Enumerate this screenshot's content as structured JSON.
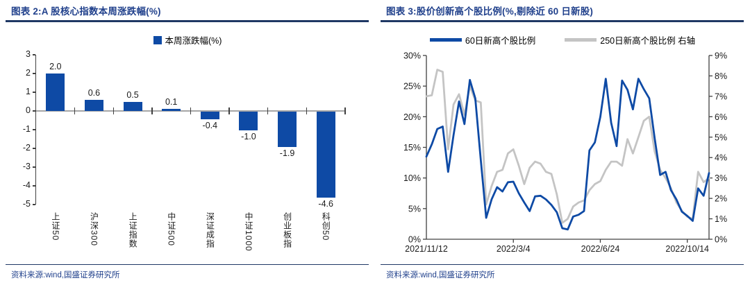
{
  "colors": {
    "accent_blue": "#0E4AA5",
    "gray_line": "#C4C4C4",
    "navy_text": "#21418C",
    "rule_navy": "#1F3864",
    "axis_gray": "#A6A6A6",
    "axis_dark": "#404040",
    "label_dark": "#1A1A1A"
  },
  "panels": {
    "left": {
      "title": "图表 2:A 股核心指数本周涨跌幅(%)",
      "source": "资料来源:wind,国盛证券研究所"
    },
    "right": {
      "title": "图表 3:股价创新高个股比例(%,剔除近 60 日新股)",
      "source": "资料来源:wind,国盛证券研究所"
    }
  },
  "chart_data": [
    {
      "type": "bar",
      "title": "A股核心指数本周涨跌幅(%)",
      "legend": "本周涨跌幅(%)",
      "legend_position": "top",
      "grid": false,
      "categories": [
        "上证50",
        "沪深300",
        "上证指数",
        "中证500",
        "深证成指",
        "中证1000",
        "创业板指",
        "科创50"
      ],
      "values": [
        2.0,
        0.6,
        0.5,
        0.1,
        -0.4,
        -1.0,
        -1.9,
        -4.6
      ],
      "xlabel": "",
      "ylabel": "",
      "ylim": [
        -5,
        3
      ],
      "y_ticks": [
        3,
        2,
        1,
        0,
        -1,
        -2,
        -3,
        -4,
        -5
      ]
    },
    {
      "type": "line",
      "title": "股价创新高个股比例(%,剔除近60日新股)",
      "legend_position": "top",
      "grid": false,
      "x_tick_labels": [
        "2021/11/12",
        "2022/3/4",
        "2022/6/24",
        "2022/10/14"
      ],
      "x_tick_indices": [
        0,
        16,
        32,
        48
      ],
      "left_axis": {
        "min": 0,
        "max": 30,
        "ticks": [
          "30%",
          "25%",
          "20%",
          "15%",
          "10%",
          "5%",
          "0%"
        ]
      },
      "right_axis": {
        "min": 0,
        "max": 9,
        "ticks": [
          "9%",
          "8%",
          "7%",
          "6%",
          "5%",
          "4%",
          "3%",
          "2%",
          "1%",
          "0%"
        ]
      },
      "series": [
        {
          "name": "60日新高个股比例",
          "key": "60day-new-high-ratio",
          "axis": "left",
          "color_key": "accent_blue",
          "values": [
            13.5,
            15.5,
            18.0,
            18.4,
            11.0,
            17.0,
            22.5,
            18.8,
            26.0,
            23.0,
            13.0,
            3.5,
            6.5,
            8.5,
            7.8,
            9.3,
            9.4,
            7.5,
            6.0,
            4.6,
            7.0,
            7.1,
            6.5,
            5.6,
            4.4,
            1.8,
            1.6,
            3.7,
            4.0,
            4.6,
            14.5,
            15.8,
            20.0,
            26.2,
            19.0,
            15.2,
            25.9,
            24.4,
            21.2,
            26.2,
            24.5,
            23.0,
            16.5,
            10.5,
            11.0,
            8.0,
            6.5,
            4.5,
            3.8,
            3.0,
            8.3,
            7.1,
            10.8
          ]
        },
        {
          "name": "250日新高个股比例 右轴",
          "key": "250day-new-high-ratio",
          "axis": "right",
          "color_key": "gray_line",
          "values": [
            7.0,
            7.05,
            8.3,
            8.2,
            4.4,
            6.6,
            7.1,
            6.1,
            7.5,
            6.8,
            6.7,
            1.7,
            2.6,
            3.3,
            3.4,
            4.2,
            4.4,
            3.6,
            2.7,
            3.5,
            3.8,
            3.7,
            3.3,
            3.2,
            2.2,
            0.8,
            1.0,
            1.6,
            1.8,
            1.9,
            2.4,
            2.7,
            2.85,
            3.4,
            3.8,
            3.8,
            3.6,
            4.9,
            4.2,
            5.0,
            5.8,
            6.0,
            4.3,
            3.4,
            3.0,
            2.5,
            1.8,
            1.4,
            1.1,
            1.0,
            3.3,
            2.8,
            3.0
          ]
        }
      ]
    }
  ]
}
